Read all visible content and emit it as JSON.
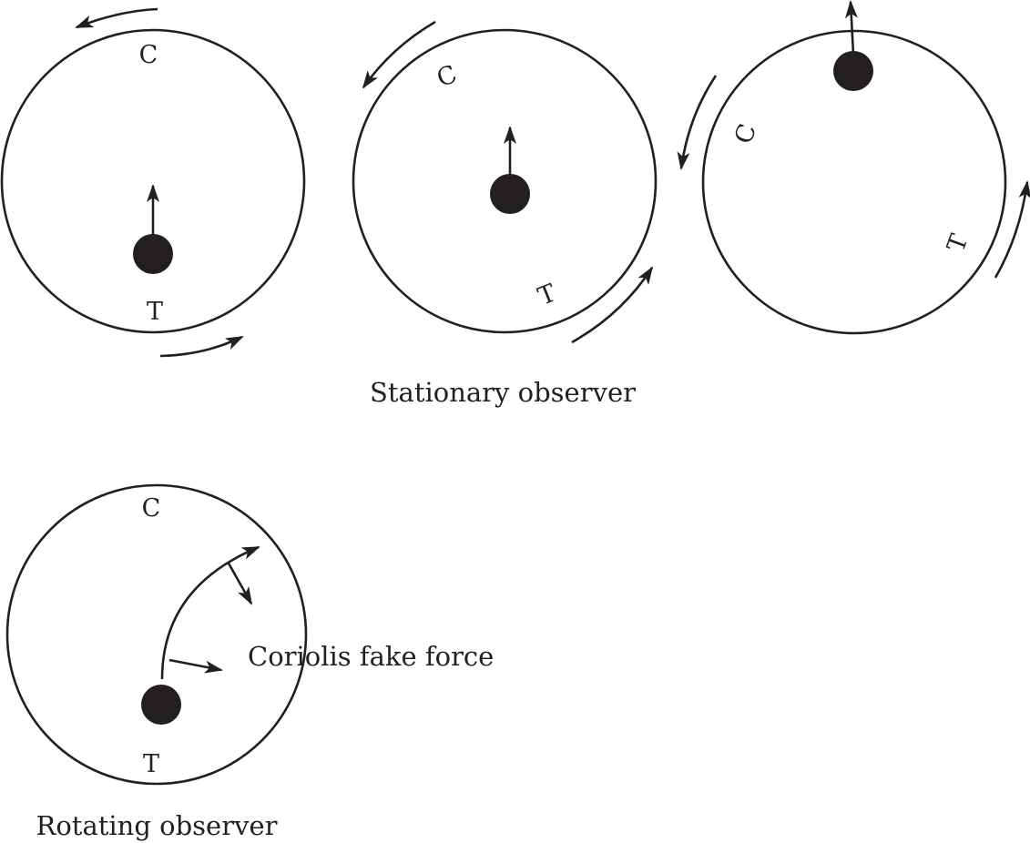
{
  "stationary": {
    "caption": "Stationary observer",
    "frames": [
      {
        "top_label": "C",
        "bottom_label": "T"
      },
      {
        "top_label": "C",
        "bottom_label": "T"
      },
      {
        "top_label": "C",
        "bottom_label": "T"
      }
    ]
  },
  "rotating": {
    "caption": "Rotating observer",
    "top_label": "C",
    "bottom_label": "T",
    "force_label": "Coriolis fake force"
  },
  "colors": {
    "ink": "#231f20",
    "background": "#ffffff"
  }
}
